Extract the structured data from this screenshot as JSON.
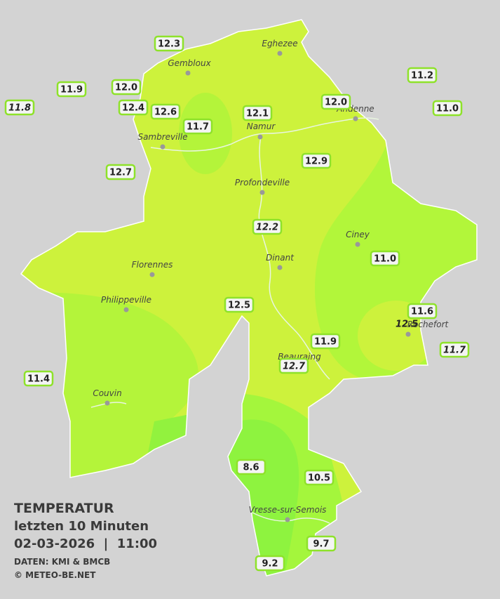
{
  "legend": {
    "title": "TEMPERATUR",
    "subtitle": "letzten 10 Minuten",
    "datetime": "02-03-2026  |  11:00",
    "source": "DATEN: KMI & BMCB",
    "copyright": "© METEO-BE.NET"
  },
  "towns": [
    "Eghezee",
    "Gembloux",
    "Andenne",
    "Namur",
    "Sambreville",
    "Profondeville",
    "Ciney",
    "Dinant",
    "Florennes",
    "Philippeville",
    "Beauraing",
    "Rochefort",
    "Couvin",
    "Vresse-sur-Semois"
  ],
  "stations": [
    "12.3",
    "11.9",
    "11.8",
    "12.0",
    "12.4",
    "12.6",
    "11.7",
    "12.1",
    "12.0",
    "11.2",
    "11.0",
    "12.7",
    "12.9",
    "12.2",
    "11.0",
    "12.5",
    "11.6",
    "12.5",
    "11.9",
    "11.7",
    "12.7",
    "11.4",
    "8.6",
    "10.5",
    "9.7",
    "9.2"
  ]
}
